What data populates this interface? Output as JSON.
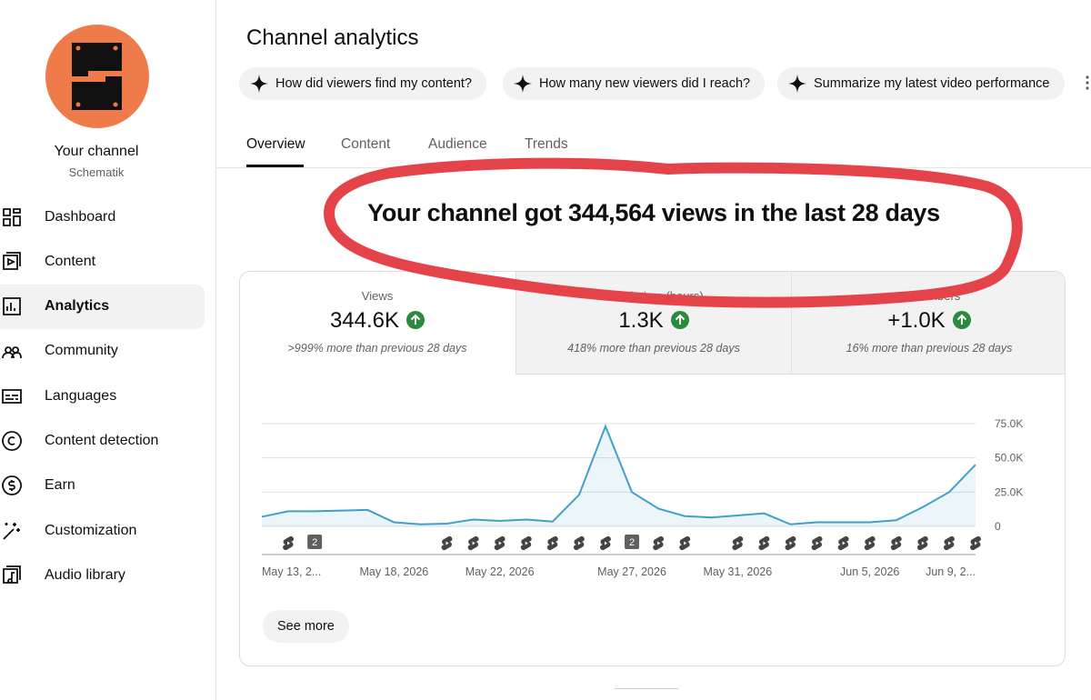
{
  "sidebar": {
    "channel_title": "Your channel",
    "channel_name": "Schematik",
    "nav": [
      {
        "label": "Dashboard"
      },
      {
        "label": "Content"
      },
      {
        "label": "Analytics",
        "selected": true
      },
      {
        "label": "Community"
      },
      {
        "label": "Languages"
      },
      {
        "label": "Content detection"
      },
      {
        "label": "Earn"
      },
      {
        "label": "Customization"
      },
      {
        "label": "Audio library"
      }
    ]
  },
  "header": {
    "title": "Channel analytics",
    "suggestions": [
      "How did viewers find my content?",
      "How many new viewers did I reach?",
      "Summarize my latest video performance"
    ],
    "tabs": [
      {
        "label": "Overview",
        "selected": true
      },
      {
        "label": "Content"
      },
      {
        "label": "Audience"
      },
      {
        "label": "Trends"
      }
    ]
  },
  "headline": "Your channel got 344,564 views in the last 28 days",
  "metrics": [
    {
      "label": "Views",
      "value": "344.6K",
      "change": ">999% more than previous 28 days",
      "selected": true
    },
    {
      "label": "Watch time (hours)",
      "value": "1.3K",
      "change": "418% more than previous 28 days"
    },
    {
      "label": "Subscribers",
      "value": "+1.0K",
      "change": "16% more than previous 28 days"
    }
  ],
  "chart_data": {
    "type": "line",
    "categories": [
      "May 13, 2...",
      null,
      null,
      null,
      null,
      "May 18, 2026",
      null,
      null,
      null,
      "May 22, 2026",
      null,
      null,
      null,
      null,
      "May 27, 2026",
      null,
      null,
      null,
      "May 31, 2026",
      null,
      null,
      null,
      null,
      "Jun 5, 2026",
      null,
      null,
      null,
      "Jun 9, 2..."
    ],
    "values": [
      7000,
      11000,
      11000,
      11500,
      12000,
      3000,
      1500,
      2000,
      5000,
      4000,
      5000,
      3500,
      23000,
      73000,
      25000,
      13000,
      7500,
      6500,
      8000,
      9500,
      1500,
      3000,
      3000,
      3000,
      4500,
      14000,
      25000,
      45000
    ],
    "uploads": [
      0,
      1,
      2,
      0,
      0,
      0,
      0,
      1,
      1,
      1,
      1,
      1,
      1,
      1,
      2,
      1,
      1,
      0,
      1,
      1,
      1,
      1,
      1,
      1,
      1,
      1,
      1,
      1
    ],
    "color": "#41a0c8",
    "ylim": [
      0,
      75000
    ],
    "yticks": [
      0,
      {
        "value": 25000,
        "label": "25.0K"
      },
      {
        "value": 50000,
        "label": "50.0K"
      },
      {
        "value": 75000,
        "label": "75.0K"
      }
    ],
    "grid": true
  },
  "see_more": "See more"
}
